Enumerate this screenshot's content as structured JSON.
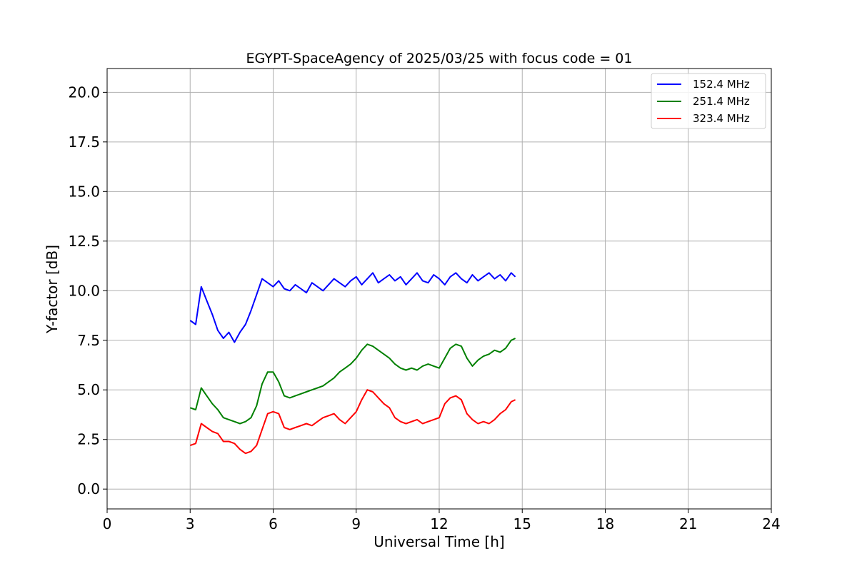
{
  "chart_data": {
    "type": "line",
    "title": "EGYPT-SpaceAgency of 2025/03/25 with focus code = 01",
    "xlabel": "Universal Time [h]",
    "ylabel": "Y-factor [dB]",
    "xlim": [
      0,
      24
    ],
    "ylim": [
      -1.0,
      21.2
    ],
    "xticks": [
      0,
      3,
      6,
      9,
      12,
      15,
      18,
      21,
      24
    ],
    "xtick_labels": [
      "0",
      "3",
      "6",
      "9",
      "12",
      "15",
      "18",
      "21",
      "24"
    ],
    "yticks": [
      0.0,
      2.5,
      5.0,
      7.5,
      10.0,
      12.5,
      15.0,
      17.5,
      20.0
    ],
    "ytick_labels": [
      "0.0",
      "2.5",
      "5.0",
      "7.5",
      "10.0",
      "12.5",
      "15.0",
      "17.5",
      "20.0"
    ],
    "grid": true,
    "legend_position": "top-right",
    "series": [
      {
        "name": "152.4 MHz",
        "color": "#0000ff",
        "x": [
          3.0,
          3.2,
          3.4,
          3.6,
          3.8,
          4.0,
          4.2,
          4.4,
          4.6,
          4.8,
          5.0,
          5.2,
          5.4,
          5.6,
          5.8,
          6.0,
          6.2,
          6.4,
          6.6,
          6.8,
          7.0,
          7.2,
          7.4,
          7.6,
          7.8,
          8.0,
          8.2,
          8.4,
          8.6,
          8.8,
          9.0,
          9.2,
          9.4,
          9.6,
          9.8,
          10.0,
          10.2,
          10.4,
          10.6,
          10.8,
          11.0,
          11.2,
          11.4,
          11.6,
          11.8,
          12.0,
          12.2,
          12.4,
          12.6,
          12.8,
          13.0,
          13.2,
          13.4,
          13.6,
          13.8,
          14.0,
          14.2,
          14.4,
          14.6,
          14.75
        ],
        "y": [
          8.5,
          8.3,
          10.2,
          9.5,
          8.8,
          8.0,
          7.6,
          7.9,
          7.4,
          7.9,
          8.3,
          9.0,
          9.8,
          10.6,
          10.4,
          10.2,
          10.5,
          10.1,
          10.0,
          10.3,
          10.1,
          9.9,
          10.4,
          10.2,
          10.0,
          10.3,
          10.6,
          10.4,
          10.2,
          10.5,
          10.7,
          10.3,
          10.6,
          10.9,
          10.4,
          10.6,
          10.8,
          10.5,
          10.7,
          10.3,
          10.6,
          10.9,
          10.5,
          10.4,
          10.8,
          10.6,
          10.3,
          10.7,
          10.9,
          10.6,
          10.4,
          10.8,
          10.5,
          10.7,
          10.9,
          10.6,
          10.8,
          10.5,
          10.9,
          10.7
        ]
      },
      {
        "name": "251.4 MHz",
        "color": "#008000",
        "x": [
          3.0,
          3.2,
          3.4,
          3.6,
          3.8,
          4.0,
          4.2,
          4.4,
          4.6,
          4.8,
          5.0,
          5.2,
          5.4,
          5.6,
          5.8,
          6.0,
          6.2,
          6.4,
          6.6,
          6.8,
          7.0,
          7.2,
          7.4,
          7.6,
          7.8,
          8.0,
          8.2,
          8.4,
          8.6,
          8.8,
          9.0,
          9.2,
          9.4,
          9.6,
          9.8,
          10.0,
          10.2,
          10.4,
          10.6,
          10.8,
          11.0,
          11.2,
          11.4,
          11.6,
          11.8,
          12.0,
          12.2,
          12.4,
          12.6,
          12.8,
          13.0,
          13.2,
          13.4,
          13.6,
          13.8,
          14.0,
          14.2,
          14.4,
          14.6,
          14.75
        ],
        "y": [
          4.1,
          4.0,
          5.1,
          4.7,
          4.3,
          4.0,
          3.6,
          3.5,
          3.4,
          3.3,
          3.4,
          3.6,
          4.2,
          5.3,
          5.9,
          5.9,
          5.4,
          4.7,
          4.6,
          4.7,
          4.8,
          4.9,
          5.0,
          5.1,
          5.2,
          5.4,
          5.6,
          5.9,
          6.1,
          6.3,
          6.6,
          7.0,
          7.3,
          7.2,
          7.0,
          6.8,
          6.6,
          6.3,
          6.1,
          6.0,
          6.1,
          6.0,
          6.2,
          6.3,
          6.2,
          6.1,
          6.6,
          7.1,
          7.3,
          7.2,
          6.6,
          6.2,
          6.5,
          6.7,
          6.8,
          7.0,
          6.9,
          7.1,
          7.5,
          7.6
        ]
      },
      {
        "name": "323.4 MHz",
        "color": "#ff0000",
        "x": [
          3.0,
          3.2,
          3.4,
          3.6,
          3.8,
          4.0,
          4.2,
          4.4,
          4.6,
          4.8,
          5.0,
          5.2,
          5.4,
          5.6,
          5.8,
          6.0,
          6.2,
          6.4,
          6.6,
          6.8,
          7.0,
          7.2,
          7.4,
          7.6,
          7.8,
          8.0,
          8.2,
          8.4,
          8.6,
          8.8,
          9.0,
          9.2,
          9.4,
          9.6,
          9.8,
          10.0,
          10.2,
          10.4,
          10.6,
          10.8,
          11.0,
          11.2,
          11.4,
          11.6,
          11.8,
          12.0,
          12.2,
          12.4,
          12.6,
          12.8,
          13.0,
          13.2,
          13.4,
          13.6,
          13.8,
          14.0,
          14.2,
          14.4,
          14.6,
          14.75
        ],
        "y": [
          2.2,
          2.3,
          3.3,
          3.1,
          2.9,
          2.8,
          2.4,
          2.4,
          2.3,
          2.0,
          1.8,
          1.9,
          2.2,
          3.0,
          3.8,
          3.9,
          3.8,
          3.1,
          3.0,
          3.1,
          3.2,
          3.3,
          3.2,
          3.4,
          3.6,
          3.7,
          3.8,
          3.5,
          3.3,
          3.6,
          3.9,
          4.5,
          5.0,
          4.9,
          4.6,
          4.3,
          4.1,
          3.6,
          3.4,
          3.3,
          3.4,
          3.5,
          3.3,
          3.4,
          3.5,
          3.6,
          4.3,
          4.6,
          4.7,
          4.5,
          3.8,
          3.5,
          3.3,
          3.4,
          3.3,
          3.5,
          3.8,
          4.0,
          4.4,
          4.5
        ]
      }
    ]
  }
}
